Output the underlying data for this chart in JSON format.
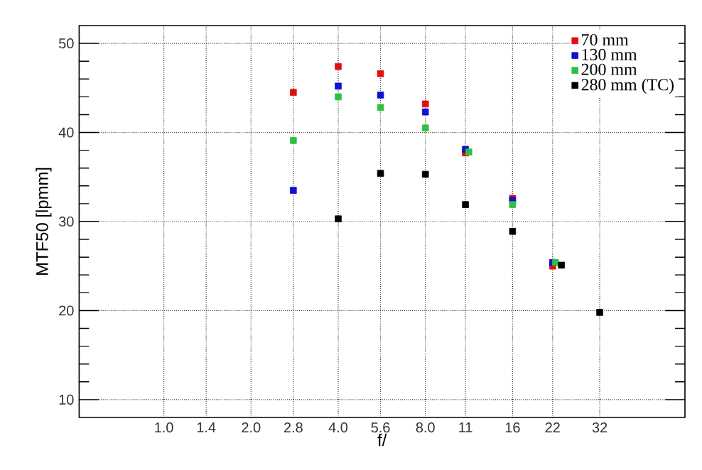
{
  "chart_data": {
    "type": "scatter",
    "xlabel": "f/",
    "ylabel": "MTF50 [lpmm]",
    "log": "x",
    "xlim": [
      0.51,
      63
    ],
    "ylim": [
      8,
      52
    ],
    "xticks": [
      {
        "value": 1,
        "label": "1.0"
      },
      1.4,
      {
        "value": 2,
        "label": "2.0"
      },
      2.8,
      {
        "value": 4,
        "label": "4.0"
      },
      5.6,
      {
        "value": 8,
        "label": "8.0"
      },
      11,
      16,
      22,
      32
    ],
    "yticks": [
      10,
      20,
      30,
      40,
      50
    ],
    "grid": true,
    "legend": "top right",
    "marker": "square",
    "series": [
      {
        "name": "70 mm",
        "color": "#e01010",
        "x": [
          2.8,
          4,
          5.6,
          8,
          11,
          16,
          22
        ],
        "values": [
          44.5,
          47.4,
          46.6,
          43.2,
          37.7,
          32.6,
          25.0
        ]
      },
      {
        "name": "130 mm",
        "color": "#1010d0",
        "x": [
          2.8,
          4,
          5.6,
          8,
          11,
          16,
          22
        ],
        "values": [
          33.5,
          45.2,
          44.2,
          42.3,
          38.1,
          32.4,
          25.4
        ]
      },
      {
        "name": "200 mm",
        "color": "#30c040",
        "x": [
          2.8,
          4,
          5.6,
          8,
          11.3,
          16,
          22.5
        ],
        "values": [
          39.1,
          44.0,
          42.8,
          40.5,
          37.8,
          31.9,
          25.4
        ]
      },
      {
        "name": "280 mm (TC)",
        "color": "#000000",
        "x": [
          4,
          5.6,
          8,
          11,
          16,
          23.6,
          32
        ],
        "values": [
          30.3,
          35.4,
          35.3,
          31.9,
          28.9,
          25.1,
          19.8
        ]
      }
    ]
  }
}
